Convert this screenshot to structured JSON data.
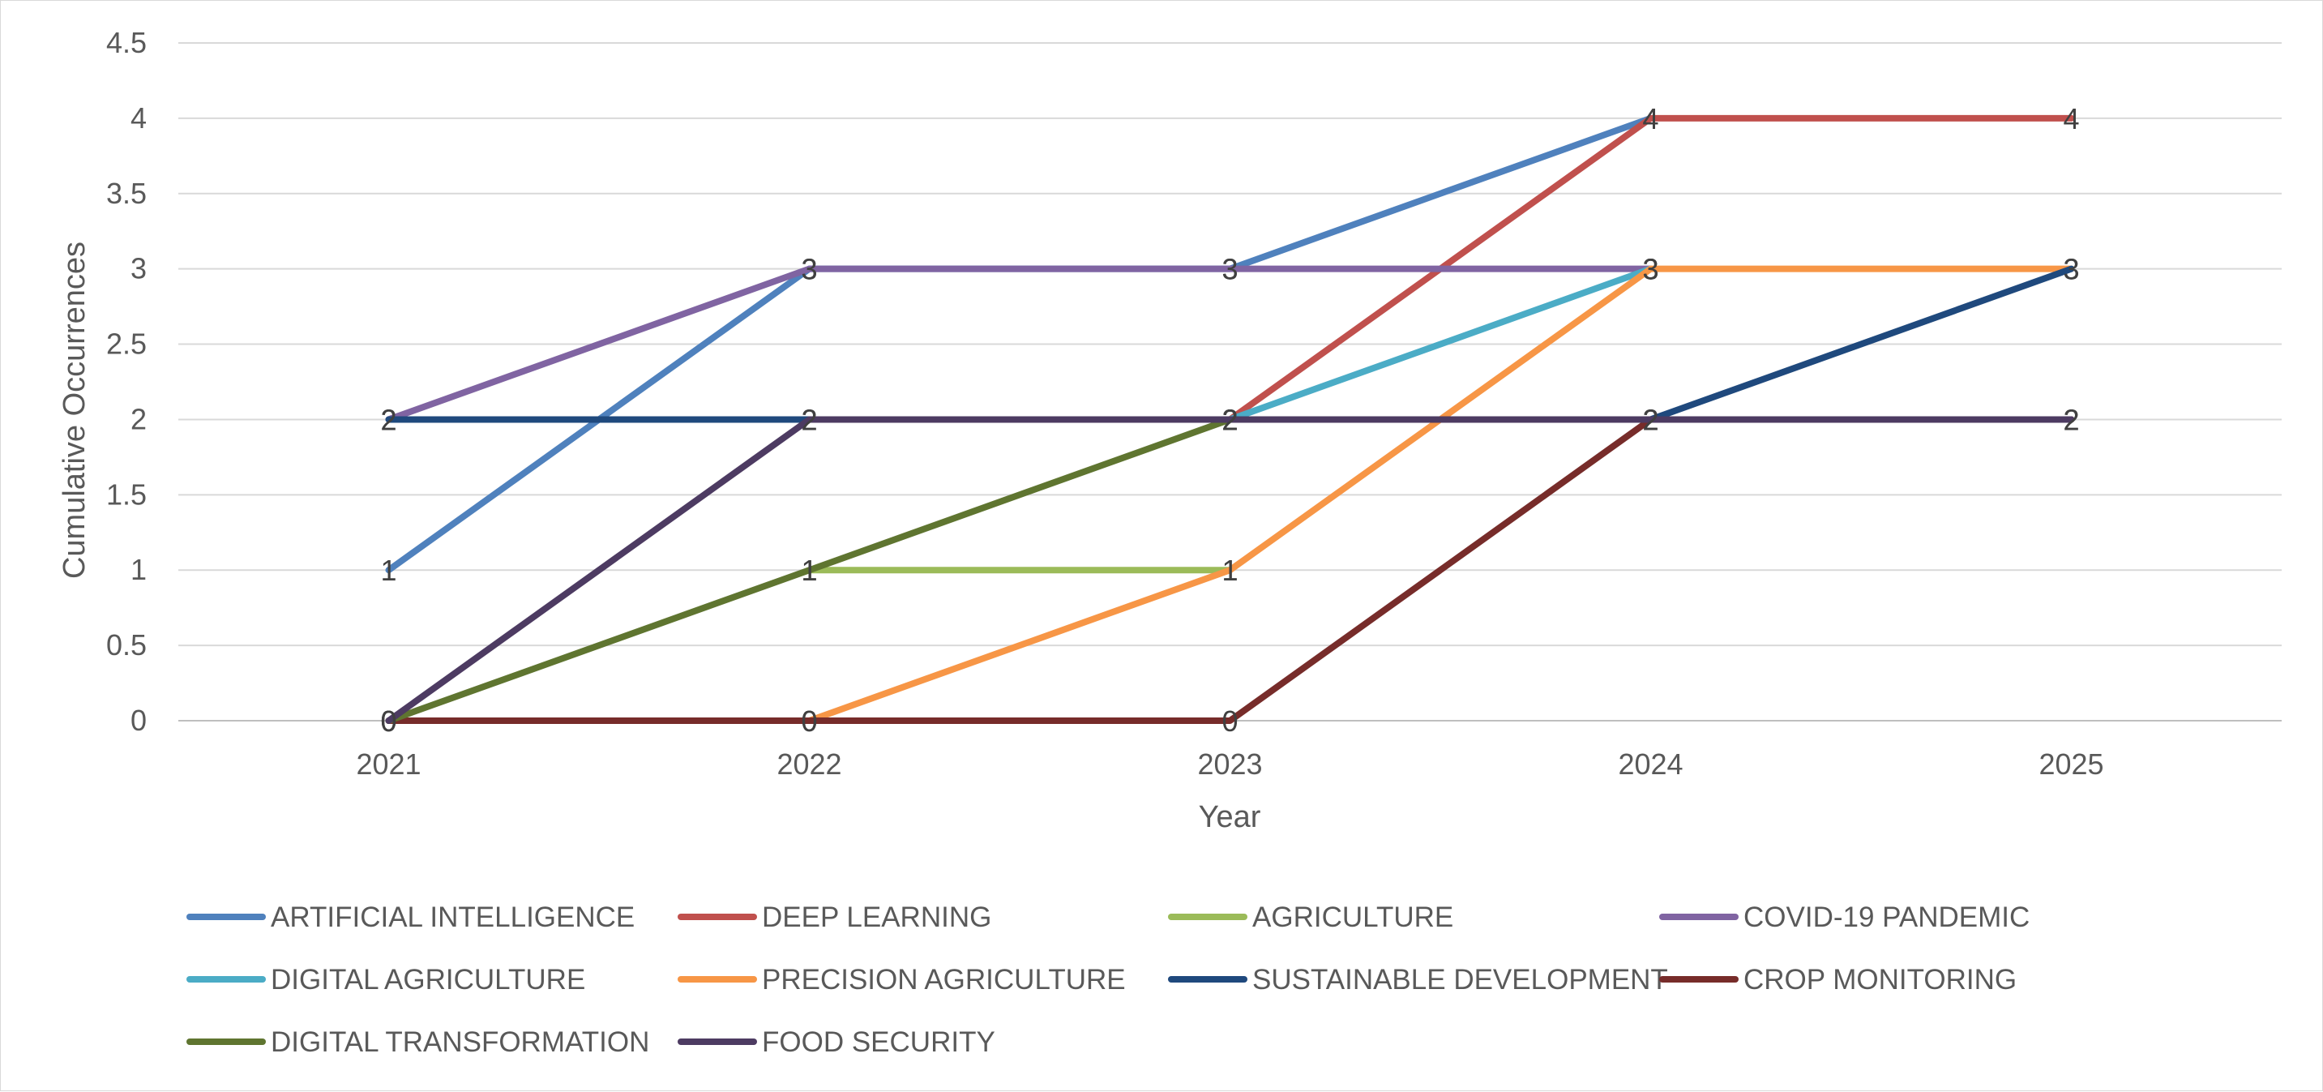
{
  "chart_data": {
    "type": "line",
    "title": "",
    "xlabel": "Year",
    "ylabel": "Cumulative Occurrences",
    "x": [
      "2021",
      "2022",
      "2023",
      "2024",
      "2025"
    ],
    "ylim": [
      0,
      4.5
    ],
    "yticks": [
      "0",
      "0.5",
      "1",
      "1.5",
      "2",
      "2.5",
      "3",
      "3.5",
      "4",
      "4.5"
    ],
    "grid": "horizontal",
    "legend_position": "bottom",
    "series": [
      {
        "name": "ARTIFICIAL INTELLIGENCE",
        "color": "#4f81bd",
        "values": [
          1,
          3,
          3,
          4,
          null
        ]
      },
      {
        "name": "DEEP LEARNING",
        "color": "#c0504d",
        "values": [
          null,
          null,
          2,
          4,
          4
        ]
      },
      {
        "name": "AGRICULTURE",
        "color": "#9bbb59",
        "values": [
          null,
          1,
          1,
          null,
          null
        ]
      },
      {
        "name": "COVID-19 PANDEMIC",
        "color": "#8064a2",
        "values": [
          2,
          3,
          3,
          3,
          null
        ]
      },
      {
        "name": "DIGITAL AGRICULTURE",
        "color": "#4bacc6",
        "values": [
          null,
          null,
          2,
          3,
          null
        ]
      },
      {
        "name": "PRECISION AGRICULTURE",
        "color": "#f79646",
        "values": [
          null,
          0,
          1,
          3,
          3
        ]
      },
      {
        "name": "SUSTAINABLE DEVELOPMENT",
        "color": "#1f497d",
        "values": [
          2,
          2,
          2,
          2,
          3
        ]
      },
      {
        "name": "CROP MONITORING",
        "color": "#772c2a",
        "values": [
          0,
          0,
          0,
          2,
          2
        ]
      },
      {
        "name": "DIGITAL TRANSFORMATION",
        "color": "#5f7530",
        "values": [
          0,
          1,
          2,
          null,
          null
        ]
      },
      {
        "name": "FOOD SECURITY",
        "color": "#4d3b62",
        "values": [
          0,
          2,
          2,
          2,
          2
        ]
      }
    ]
  }
}
